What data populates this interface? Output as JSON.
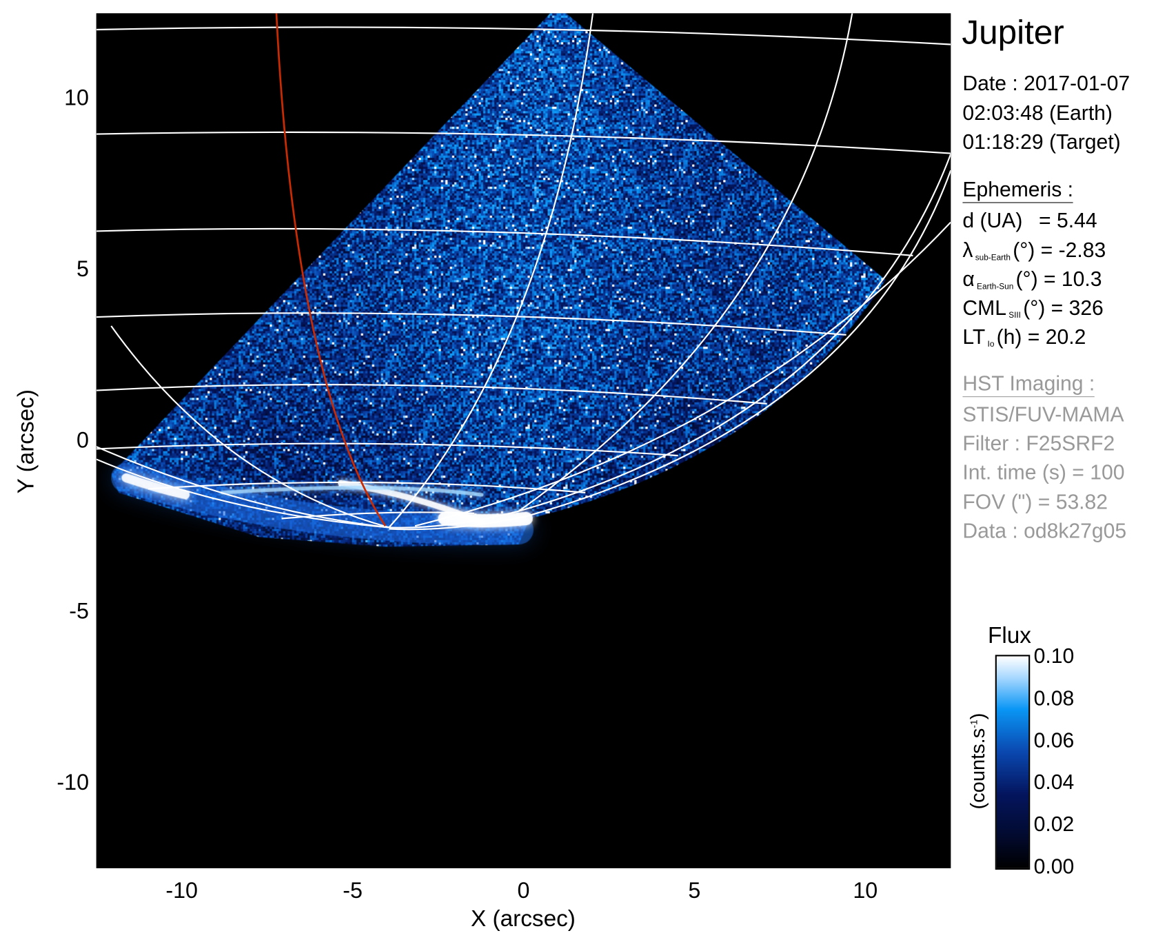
{
  "chart_data": {
    "type": "heatmap",
    "title": "Jupiter",
    "xlabel": "X (arcsec)",
    "ylabel": "Y (arcsec)",
    "xlim": [
      -12.5,
      12.5
    ],
    "ylim": [
      -12.5,
      12.5
    ],
    "xticks": [
      "-10",
      "-5",
      "0",
      "5",
      "10"
    ],
    "xtick_values": [
      -10,
      -5,
      0,
      5,
      10
    ],
    "yticks": [
      "10",
      "5",
      "0",
      "-5",
      "-10"
    ],
    "ytick_values": [
      10,
      5,
      0,
      -5,
      -10
    ],
    "grid": "planetographic latitude/longitude overlay (white), red meridian line",
    "colorbar": {
      "title": "Flux",
      "unit_prefix": "(counts.s",
      "unit_sup": "-1",
      "unit_suffix": ")",
      "range": [
        0.0,
        0.1
      ],
      "ticks": [
        "0.10",
        "0.08",
        "0.06",
        "0.04",
        "0.02",
        "0.00"
      ],
      "tick_values": [
        0.1,
        0.08,
        0.06,
        0.04,
        0.02,
        0.0
      ],
      "colormap": [
        "#000000",
        "#04155e",
        "#0a48b0",
        "#0a96f5",
        "#ffffff"
      ]
    },
    "colors": {
      "grid": "#ffffff",
      "meridian": "#cc2a00",
      "background": "#000000"
    }
  },
  "info": {
    "target": "Jupiter",
    "date": "Date : 2017-01-07",
    "earth_time": "02:03:48 (Earth)",
    "target_time": "01:18:29 (Target)",
    "ephemeris_header": "Ephemeris :",
    "d": {
      "label": "d (UA)",
      "value": "= 5.44"
    },
    "lambda": {
      "sym": "λ",
      "sub": "sub-Earth",
      "unit": "(°) = -2.83"
    },
    "alpha": {
      "sym": "α",
      "sub": "Earth-Sun",
      "unit": "(°) = 10.3"
    },
    "cml": {
      "sym": "CML",
      "sub": "SIII",
      "unit": "(°) = 326"
    },
    "lt": {
      "sym": "LT",
      "sub": "Io",
      "unit": "(h) = 20.2"
    },
    "hst_header": "HST Imaging :",
    "instrument": "STIS/FUV-MAMA",
    "filter": "Filter : F25SRF2",
    "int_time": "Int. time (s) = 100",
    "fov": "FOV (\") = 53.82",
    "data": "Data : od8k27g05"
  }
}
